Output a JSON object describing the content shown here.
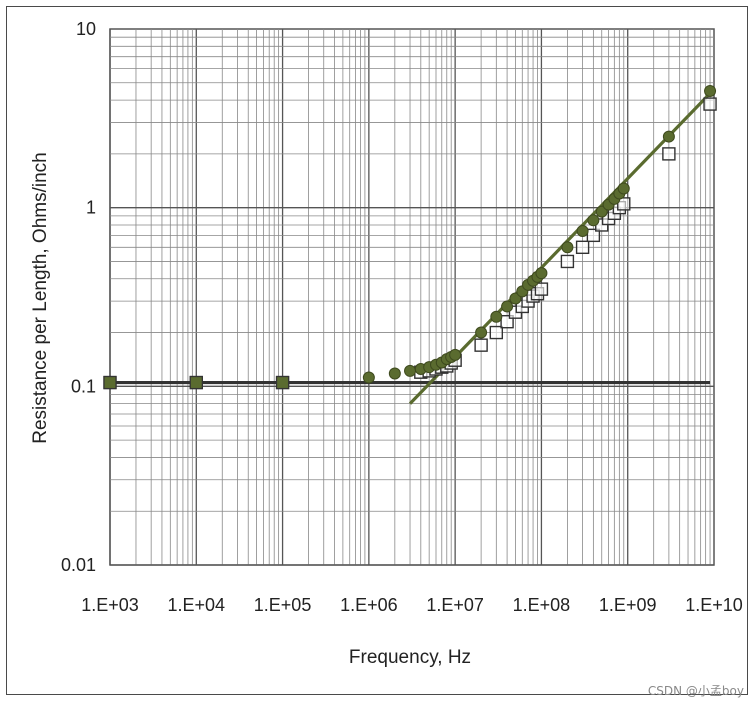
{
  "chart_data": {
    "type": "scatter",
    "title": "",
    "xlabel": "Frequency, Hz",
    "ylabel": "Resistance per Length, Ohms/inch",
    "x_scale": "log",
    "y_scale": "log",
    "xlim": [
      1000,
      10000000000
    ],
    "ylim": [
      0.01,
      10
    ],
    "grid": true,
    "x_tick_labels": [
      "1.E+03",
      "1.E+04",
      "1.E+05",
      "1.E+06",
      "1.E+07",
      "1.E+08",
      "1.E+09",
      "1.E+10"
    ],
    "x_tick_values": [
      1000,
      10000,
      100000,
      1000000,
      10000000,
      100000000,
      1000000000,
      10000000000
    ],
    "y_tick_labels": [
      "0.01",
      "0.1",
      "1",
      "10"
    ],
    "y_tick_values": [
      0.01,
      0.1,
      1,
      10
    ],
    "series": [
      {
        "marker": "filled-circle",
        "color": "#5a6b2f",
        "points": [
          [
            1000,
            0.105
          ],
          [
            10000,
            0.105
          ],
          [
            100000,
            0.105
          ],
          [
            1000000,
            0.112
          ],
          [
            2000000,
            0.118
          ],
          [
            3000000,
            0.122
          ],
          [
            4000000,
            0.125
          ],
          [
            5000000,
            0.128
          ],
          [
            6000000,
            0.132
          ],
          [
            7000000,
            0.136
          ],
          [
            8000000,
            0.142
          ],
          [
            9000000,
            0.146
          ],
          [
            10000000,
            0.15
          ],
          [
            20000000,
            0.2
          ],
          [
            30000000,
            0.245
          ],
          [
            40000000,
            0.28
          ],
          [
            50000000,
            0.31
          ],
          [
            60000000,
            0.34
          ],
          [
            70000000,
            0.37
          ],
          [
            80000000,
            0.39
          ],
          [
            90000000,
            0.41
          ],
          [
            100000000,
            0.43
          ],
          [
            200000000,
            0.6
          ],
          [
            300000000,
            0.74
          ],
          [
            400000000,
            0.85
          ],
          [
            500000000,
            0.95
          ],
          [
            600000000,
            1.04
          ],
          [
            700000000,
            1.12
          ],
          [
            800000000,
            1.2
          ],
          [
            900000000,
            1.28
          ],
          [
            3000000000,
            2.5
          ],
          [
            9000000000,
            4.5
          ]
        ]
      },
      {
        "marker": "open-square",
        "color": "#333333",
        "points": [
          [
            1000,
            0.105
          ],
          [
            10000,
            0.105
          ],
          [
            100000,
            0.105
          ],
          [
            4000000,
            0.12
          ],
          [
            5000000,
            0.122
          ],
          [
            6000000,
            0.125
          ],
          [
            7000000,
            0.128
          ],
          [
            8000000,
            0.13
          ],
          [
            9000000,
            0.135
          ],
          [
            10000000,
            0.14
          ],
          [
            20000000,
            0.17
          ],
          [
            30000000,
            0.2
          ],
          [
            40000000,
            0.23
          ],
          [
            50000000,
            0.26
          ],
          [
            60000000,
            0.28
          ],
          [
            70000000,
            0.3
          ],
          [
            80000000,
            0.32
          ],
          [
            90000000,
            0.33
          ],
          [
            100000000,
            0.35
          ],
          [
            200000000,
            0.5
          ],
          [
            300000000,
            0.6
          ],
          [
            400000000,
            0.7
          ],
          [
            500000000,
            0.8
          ],
          [
            600000000,
            0.87
          ],
          [
            700000000,
            0.93
          ],
          [
            800000000,
            1.0
          ],
          [
            900000000,
            1.05
          ],
          [
            3000000000,
            2.0
          ],
          [
            9000000000,
            3.8
          ]
        ]
      }
    ],
    "lines": [
      {
        "name": "dc-resistance-line",
        "color": "#333333",
        "from": [
          1000,
          0.105
        ],
        "to": [
          9000000000,
          0.105
        ]
      },
      {
        "name": "skin-effect-line",
        "color": "#5a6b2f",
        "from": [
          3000000,
          0.08
        ],
        "to": [
          10000000000,
          4.6
        ]
      }
    ]
  },
  "watermark": "CSDN @小孟boy"
}
